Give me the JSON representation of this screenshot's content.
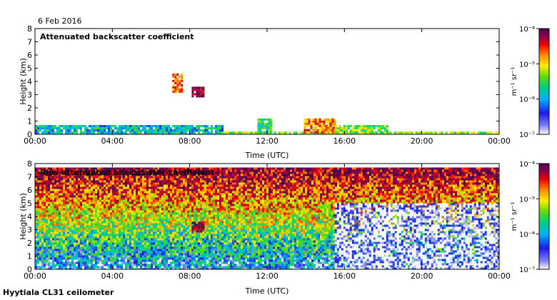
{
  "date_label": "6 Feb 2016",
  "footer_label": "Hyytiala CL31 ceilometer",
  "colors": {
    "colormap": [
      "#ffffff",
      "#1a1ae6",
      "#00b0ff",
      "#00d27a",
      "#66dd00",
      "#ffee00",
      "#ff8800",
      "#ee0000",
      "#8b0050",
      "#4d004d"
    ]
  },
  "chart_data": [
    {
      "type": "heatmap",
      "title": "Attenuated backscatter coefficient",
      "xlabel": "Time (UTC)",
      "ylabel": "Height (km)",
      "xlim_hours": [
        0,
        24
      ],
      "ylim_km": [
        0,
        8
      ],
      "x_ticks": [
        "00:00",
        "04:00",
        "08:00",
        "12:00",
        "16:00",
        "20:00",
        "00:00"
      ],
      "y_ticks": [
        "0",
        "1",
        "2",
        "3",
        "4",
        "5",
        "6",
        "7",
        "8"
      ],
      "colorbar": {
        "label": "m⁻¹ sr⁻¹",
        "ticks": [
          "10⁻⁷",
          "10⁻⁶",
          "10⁻⁵",
          "10⁻⁴"
        ],
        "range_log10": [
          -7,
          -4
        ]
      },
      "features": [
        {
          "label": "boundary layer aerosol",
          "t_start": 0.0,
          "t_end": 9.7,
          "h_bottom": 0.0,
          "h_top": 0.7,
          "log10_beta": -6.2
        },
        {
          "label": "surface layer",
          "t_start": 9.7,
          "t_end": 24.0,
          "h_bottom": 0.0,
          "h_top": 0.2,
          "log10_beta": -5.6
        },
        {
          "label": "thin cloud",
          "t_start": 7.1,
          "t_end": 7.6,
          "h_bottom": 3.3,
          "h_top": 4.6,
          "log10_beta": -4.9
        },
        {
          "label": "thin cloud",
          "t_start": 8.1,
          "t_end": 8.7,
          "h_bottom": 2.8,
          "h_top": 3.6,
          "log10_beta": -4.3
        },
        {
          "label": "low aerosol",
          "t_start": 11.5,
          "t_end": 12.2,
          "h_bottom": 0.2,
          "h_top": 1.2,
          "log10_beta": -5.9
        },
        {
          "label": "low cloud",
          "t_start": 13.9,
          "t_end": 15.5,
          "h_bottom": 0.1,
          "h_top": 1.2,
          "log10_beta": -5.0
        },
        {
          "label": "low aerosol",
          "t_start": 15.5,
          "t_end": 18.2,
          "h_bottom": 0.1,
          "h_top": 0.7,
          "log10_beta": -5.7
        }
      ]
    },
    {
      "type": "heatmap",
      "title": "Raw attenuated backscatter coefficient",
      "xlabel": "Time (UTC)",
      "ylabel": "Height (km)",
      "xlim_hours": [
        0,
        24
      ],
      "ylim_km": [
        0,
        8
      ],
      "x_ticks": [
        "00:00",
        "04:00",
        "08:00",
        "12:00",
        "16:00",
        "20:00",
        "00:00"
      ],
      "y_ticks": [
        "0",
        "1",
        "2",
        "3",
        "4",
        "5",
        "6",
        "7",
        "8"
      ],
      "colorbar": {
        "label": "m⁻¹ sr⁻¹",
        "ticks": [
          "10⁻⁷",
          "10⁻⁶",
          "10⁻⁵",
          "10⁻⁴"
        ],
        "range_log10": [
          -7,
          -4
        ]
      },
      "features": [
        {
          "label": "noise gradient",
          "t_start": 0.0,
          "t_end": 24.0,
          "h_bottom": 0.0,
          "h_top": 7.7,
          "log10_beta_at_top": -4.3,
          "log10_beta_at_bottom": -6.6
        },
        {
          "label": "thin cloud",
          "t_start": 8.1,
          "t_end": 8.7,
          "h_bottom": 2.8,
          "h_top": 3.6,
          "log10_beta": -4.3
        },
        {
          "label": "low signal region",
          "t_start": 15.5,
          "t_end": 24.0,
          "h_bottom": 0.0,
          "h_top": 5.0,
          "log10_beta": -7.0
        }
      ]
    }
  ]
}
